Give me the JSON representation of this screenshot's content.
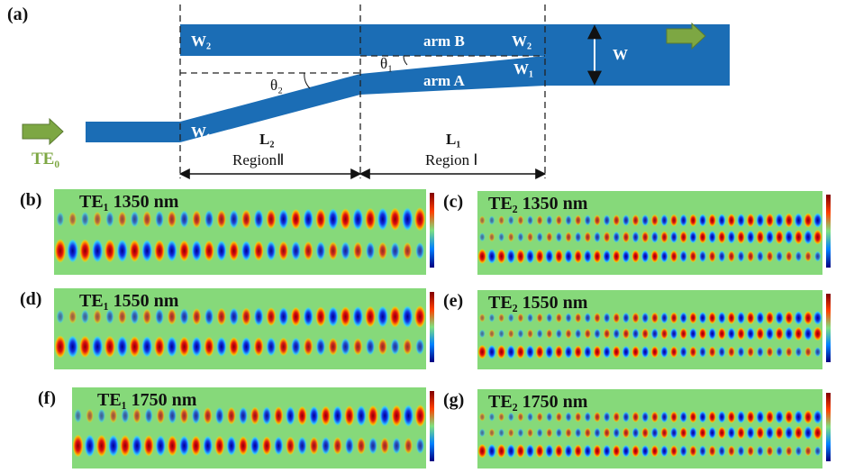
{
  "panel_a": {
    "label": "(a)",
    "w2_left": "W₂",
    "arm_b": "arm B",
    "w2_right": "W₂",
    "w": "W",
    "theta1": "θ₁",
    "theta2": "θ₂",
    "arm_a": "arm A",
    "w1_right": "W₁",
    "w1_left": "W₁",
    "input": "TE₀",
    "l2": "L₂",
    "region2": "RegionⅡ",
    "l1": "L₁",
    "region1": "Region Ⅰ"
  },
  "panels": [
    {
      "label": "(b)",
      "title": "TE₁ 1350 nm"
    },
    {
      "label": "(c)",
      "title": "TE₂ 1350 nm"
    },
    {
      "label": "(d)",
      "title": "TE₁ 1550 nm"
    },
    {
      "label": "(e)",
      "title": "TE₂ 1550 nm"
    },
    {
      "label": "(f)",
      "title": "TE₁ 1750 nm"
    },
    {
      "label": "(g)",
      "title": "TE₂ 1750 nm"
    }
  ]
}
